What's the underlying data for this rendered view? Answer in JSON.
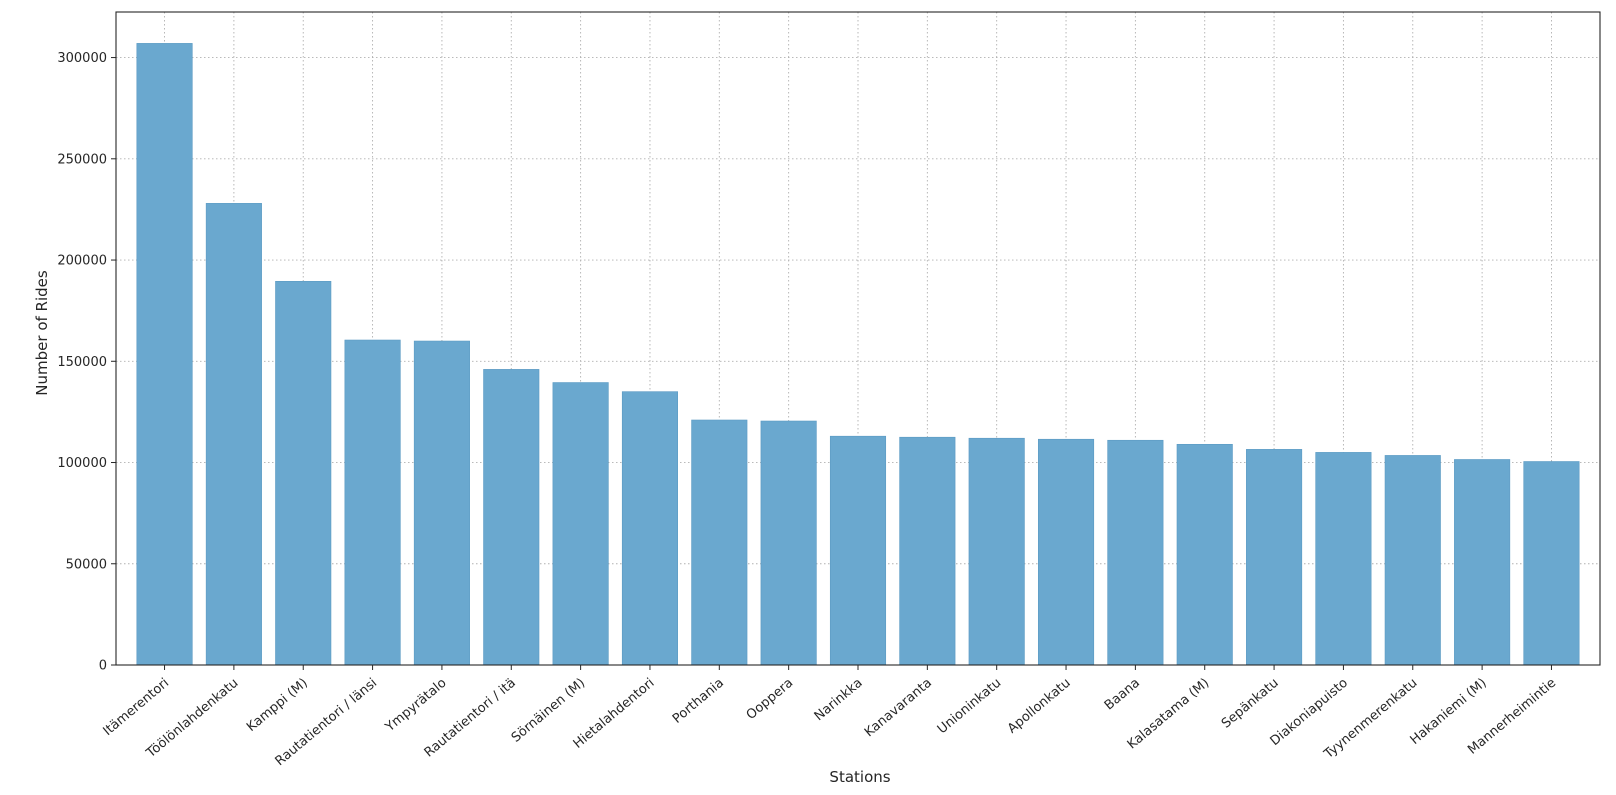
{
  "chart_data": {
    "type": "bar",
    "title": "",
    "xlabel": "Stations",
    "ylabel": "Number of Rides",
    "categories": [
      "Itämerentori",
      "Töölönlahdenkatu",
      "Kamppi (M)",
      "Rautatientori / länsi",
      "Ympyrätalo",
      "Rautatientori / itä",
      "Sörnäinen (M)",
      "Hietalahdentori",
      "Porthania",
      "Ooppera",
      "Narinkka",
      "Kanavaranta",
      "Unioninkatu",
      "Apollonkatu",
      "Baana",
      "Kalasatama (M)",
      "Sepänkatu",
      "Diakoniapuisto",
      "Tyynenmerenkatu",
      "Hakaniemi (M)",
      "Mannerheimintie"
    ],
    "values": [
      307000,
      228000,
      189500,
      160500,
      160000,
      146000,
      139500,
      135000,
      121000,
      120500,
      113000,
      112500,
      112000,
      111500,
      111000,
      109000,
      106500,
      105000,
      103500,
      101500,
      100500
    ],
    "ylim": [
      0,
      322500
    ],
    "yticks": [
      0,
      50000,
      100000,
      150000,
      200000,
      250000,
      300000
    ],
    "grid": true,
    "grid_style": "dotted",
    "bar_color": "#6aa8cf",
    "bar_edge_color": "#5b9ac3",
    "axis_color": "#262626",
    "grid_color": "#b0b0b0",
    "legend": "none"
  }
}
